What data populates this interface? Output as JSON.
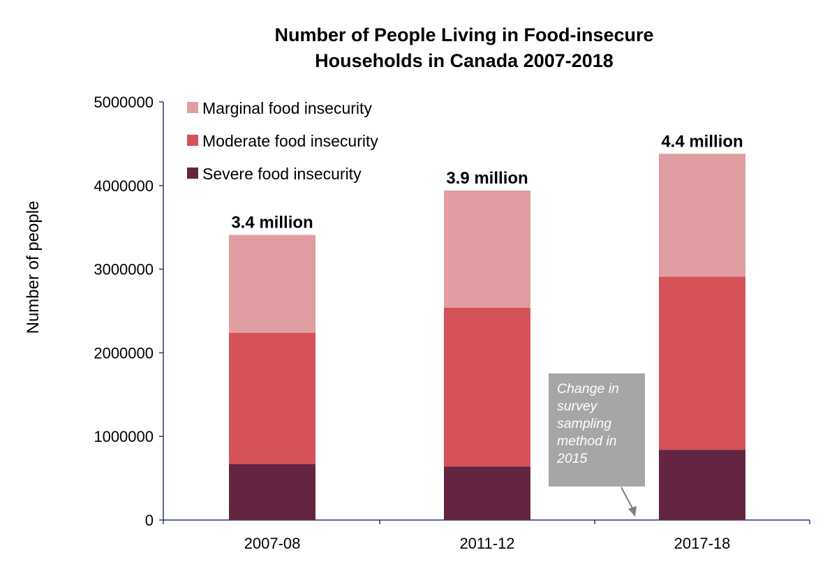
{
  "chart_data": {
    "type": "bar",
    "stacked": true,
    "title": "Number of People Living in Food-insecure Households in Canada 2007-2018",
    "title_lines": [
      "Number of People Living in Food-insecure",
      "Households in Canada 2007-2018"
    ],
    "xlabel": "",
    "ylabel": "Number of people",
    "ylim": [
      0,
      5000000
    ],
    "yticks": [
      "0",
      "1000000",
      "2000000",
      "3000000",
      "4000000",
      "5000000"
    ],
    "categories": [
      "2007-08",
      "2011-12",
      "2017-18"
    ],
    "series": [
      {
        "name": "Severe food insecurity",
        "color": "#632542",
        "values": [
          670000,
          640000,
          840000
        ]
      },
      {
        "name": "Moderate food insecurity",
        "color": "#d45258",
        "values": [
          1570000,
          1900000,
          2070000
        ]
      },
      {
        "name": "Marginal food insecurity",
        "color": "#e09ea2",
        "values": [
          1170000,
          1400000,
          1470000
        ]
      }
    ],
    "totals_labels": [
      "3.4 million",
      "3.9 million",
      "4.4 million"
    ],
    "legend_position": "top-left",
    "grid": false,
    "annotation": {
      "text_lines": [
        "Change in",
        "survey",
        "sampling",
        "method in",
        "2015"
      ]
    }
  }
}
